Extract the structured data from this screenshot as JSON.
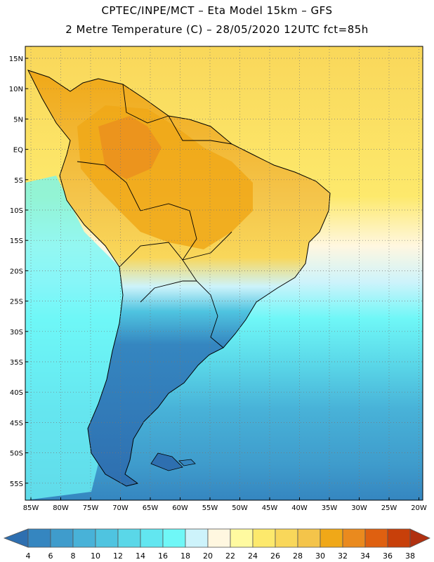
{
  "title": {
    "line1": "CPTEC/INPE/MCT –  Eta Model 15km – GFS",
    "line2": "2 Metre Temperature (C) – 28/05/2020 12UTC fct=85h"
  },
  "axes": {
    "lat_labels": [
      "15N",
      "10N",
      "5N",
      "EQ",
      "5S",
      "10S",
      "15S",
      "20S",
      "25S",
      "30S",
      "35S",
      "40S",
      "45S",
      "50S",
      "55S"
    ],
    "lon_labels": [
      "85W",
      "80W",
      "75W",
      "70W",
      "65W",
      "60W",
      "55W",
      "50W",
      "45W",
      "40W",
      "35W",
      "30W",
      "25W",
      "20W"
    ]
  },
  "colorbar": {
    "labels": [
      "4",
      "6",
      "8",
      "10",
      "12",
      "14",
      "16",
      "18",
      "20",
      "22",
      "24",
      "26",
      "28",
      "30",
      "32",
      "34",
      "36",
      "38"
    ],
    "colors": [
      "#2e6fb0",
      "#3586c0",
      "#3f9ccc",
      "#48b2d8",
      "#4fc4e0",
      "#5ad7e8",
      "#62e6f0",
      "#6ff7f7",
      "#cdf3fb",
      "#fff7e0",
      "#fffaa0",
      "#fde96c",
      "#f9d75a",
      "#f4c44a",
      "#f0a818",
      "#ea8a1e",
      "#df6010",
      "#c8400a",
      "#b03010"
    ]
  },
  "palette": {
    "land_south_cold": "#2e6fb0",
    "land_andes_edge": "#4fc4e0",
    "land_north_hot": "#f0a818",
    "land_east": "#f4c44a",
    "ocean_north": "#f9d75a",
    "ocean_mid": "#fff7e0",
    "ocean_cool": "#6ff7f7",
    "ocean_south": "#48b2d8",
    "ocean_far_south": "#3586c0"
  }
}
